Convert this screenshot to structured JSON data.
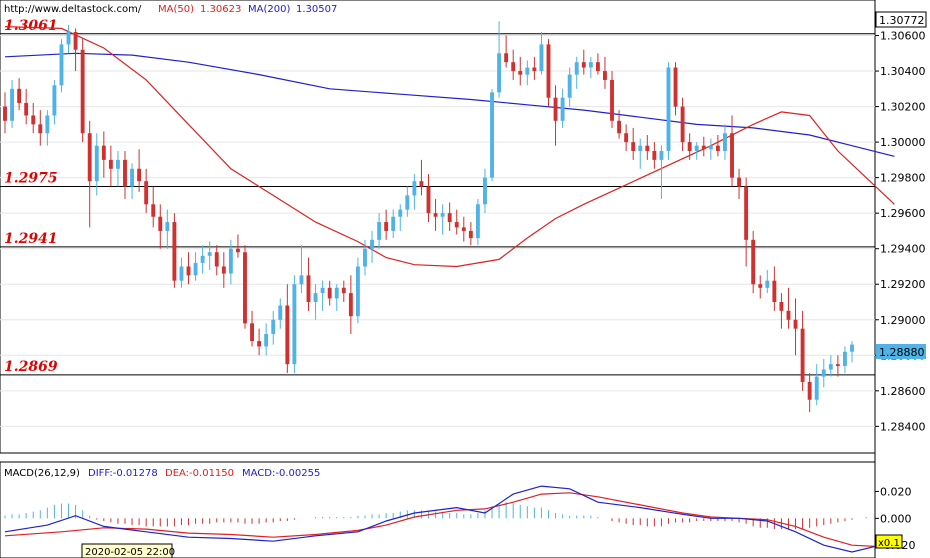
{
  "header": {
    "url": "http://www.deltastock.com/",
    "ma50_label": "MA(50)",
    "ma50_value": "1.30623",
    "ma200_label": "MA(200)",
    "ma200_value": "1.30507"
  },
  "macd_header": {
    "label": "MACD(26,12,9)",
    "diff": "DIFF:-0.01278",
    "dea": "DEA:-0.01150",
    "macd": "MACD:-0.00255"
  },
  "price_tag_top": "1.30772",
  "price_tag_current": "1.28880",
  "zoom_label": "x0.1",
  "cursor_time": "2020-02-05 22:00",
  "colors": {
    "bull": "#4fb3e8",
    "bear": "#d03030",
    "ma50": "#e02020",
    "ma200": "#2020d0",
    "level_text": "#e00000"
  },
  "chart_data": {
    "type": "candlestick",
    "ylim": [
      1.2825,
      1.308
    ],
    "y_ticks": [
      "1.30600",
      "1.30400",
      "1.30200",
      "1.30000",
      "1.29800",
      "1.29600",
      "1.29400",
      "1.29200",
      "1.29000",
      "1.28800",
      "1.28600",
      "1.28400"
    ],
    "levels": [
      {
        "label": "1.3061",
        "value": 1.3061
      },
      {
        "label": "1.2975",
        "value": 1.2975
      },
      {
        "label": "1.2941",
        "value": 1.2941
      },
      {
        "label": "1.2869",
        "value": 1.2869
      }
    ],
    "candles": [
      [
        1.302,
        1.3028,
        1.3005,
        1.3012
      ],
      [
        1.3012,
        1.3035,
        1.3008,
        1.303
      ],
      [
        1.303,
        1.3036,
        1.3018,
        1.3022
      ],
      [
        1.3022,
        1.303,
        1.301,
        1.3015
      ],
      [
        1.3015,
        1.3022,
        1.3005,
        1.301
      ],
      [
        1.301,
        1.3018,
        1.2998,
        1.3005
      ],
      [
        1.3005,
        1.3018,
        1.2998,
        1.3015
      ],
      [
        1.3015,
        1.3035,
        1.301,
        1.3032
      ],
      [
        1.3032,
        1.3058,
        1.3028,
        1.3055
      ],
      [
        1.3055,
        1.3066,
        1.305,
        1.3062
      ],
      [
        1.3062,
        1.3064,
        1.304,
        1.3052
      ],
      [
        1.3052,
        1.3058,
        1.3,
        1.3005
      ],
      [
        1.3005,
        1.3012,
        1.2952,
        1.2978
      ],
      [
        1.2978,
        1.3005,
        1.297,
        1.2998
      ],
      [
        1.2998,
        1.3006,
        1.298,
        1.299
      ],
      [
        1.299,
        1.2998,
        1.2975,
        1.2985
      ],
      [
        1.2985,
        1.2995,
        1.2975,
        1.299
      ],
      [
        1.299,
        1.2995,
        1.2968,
        1.2975
      ],
      [
        1.2975,
        1.2988,
        1.2968,
        1.2985
      ],
      [
        1.2985,
        1.2996,
        1.2972,
        1.2978
      ],
      [
        1.2978,
        1.2985,
        1.296,
        1.2965
      ],
      [
        1.2965,
        1.2975,
        1.2952,
        1.2958
      ],
      [
        1.2958,
        1.2965,
        1.294,
        1.295
      ],
      [
        1.295,
        1.2962,
        1.294,
        1.2955
      ],
      [
        1.2955,
        1.296,
        1.2918,
        1.2922
      ],
      [
        1.2922,
        1.2935,
        1.2918,
        1.293
      ],
      [
        1.293,
        1.2938,
        1.292,
        1.2925
      ],
      [
        1.2925,
        1.2938,
        1.2922,
        1.2932
      ],
      [
        1.2932,
        1.2942,
        1.2926,
        1.2936
      ],
      [
        1.2936,
        1.2944,
        1.2928,
        1.2938
      ],
      [
        1.2938,
        1.2942,
        1.2925,
        1.293
      ],
      [
        1.293,
        1.2938,
        1.2918,
        1.2926
      ],
      [
        1.2926,
        1.2945,
        1.292,
        1.294
      ],
      [
        1.294,
        1.2948,
        1.2935,
        1.2938
      ],
      [
        1.2938,
        1.2942,
        1.2895,
        1.2898
      ],
      [
        1.2898,
        1.2905,
        1.2885,
        1.2888
      ],
      [
        1.2888,
        1.2895,
        1.288,
        1.2885
      ],
      [
        1.2885,
        1.2898,
        1.288,
        1.2892
      ],
      [
        1.2892,
        1.2905,
        1.2886,
        1.29
      ],
      [
        1.29,
        1.2912,
        1.2895,
        1.2908
      ],
      [
        1.2908,
        1.292,
        1.287,
        1.2875
      ],
      [
        1.2875,
        1.2925,
        1.287,
        1.292
      ],
      [
        1.292,
        1.2942,
        1.2915,
        1.2925
      ],
      [
        1.2925,
        1.2935,
        1.2905,
        1.291
      ],
      [
        1.291,
        1.292,
        1.29,
        1.2915
      ],
      [
        1.2915,
        1.2922,
        1.2905,
        1.2918
      ],
      [
        1.2918,
        1.2922,
        1.2908,
        1.2912
      ],
      [
        1.2912,
        1.292,
        1.2905,
        1.2918
      ],
      [
        1.2918,
        1.2922,
        1.291,
        1.2915
      ],
      [
        1.2915,
        1.2925,
        1.2892,
        1.2902
      ],
      [
        1.2902,
        1.2935,
        1.2898,
        1.293
      ],
      [
        1.293,
        1.2945,
        1.2925,
        1.294
      ],
      [
        1.294,
        1.295,
        1.2932,
        1.2945
      ],
      [
        1.2945,
        1.296,
        1.294,
        1.2955
      ],
      [
        1.2955,
        1.2962,
        1.2945,
        1.295
      ],
      [
        1.295,
        1.2962,
        1.2946,
        1.2958
      ],
      [
        1.2958,
        1.2965,
        1.295,
        1.2962
      ],
      [
        1.2962,
        1.2975,
        1.2958,
        1.297
      ],
      [
        1.297,
        1.2982,
        1.2962,
        1.2978
      ],
      [
        1.2978,
        1.299,
        1.297,
        1.2975
      ],
      [
        1.2975,
        1.2982,
        1.2955,
        1.296
      ],
      [
        1.296,
        1.2968,
        1.295,
        1.2958
      ],
      [
        1.2958,
        1.2965,
        1.2948,
        1.296
      ],
      [
        1.296,
        1.2966,
        1.295,
        1.2955
      ],
      [
        1.2955,
        1.2962,
        1.2948,
        1.2952
      ],
      [
        1.2952,
        1.2958,
        1.2944,
        1.295
      ],
      [
        1.295,
        1.2955,
        1.2942,
        1.2946
      ],
      [
        1.2946,
        1.2968,
        1.2942,
        1.2965
      ],
      [
        1.2965,
        1.2985,
        1.296,
        1.298
      ],
      [
        1.298,
        1.303,
        1.2978,
        1.3028
      ],
      [
        1.3028,
        1.3068,
        1.3025,
        1.305
      ],
      [
        1.305,
        1.306,
        1.3042,
        1.3045
      ],
      [
        1.3045,
        1.3052,
        1.3035,
        1.304
      ],
      [
        1.304,
        1.3048,
        1.3032,
        1.3038
      ],
      [
        1.3038,
        1.3046,
        1.3032,
        1.3042
      ],
      [
        1.3042,
        1.3048,
        1.3035,
        1.304
      ],
      [
        1.304,
        1.3062,
        1.3038,
        1.3055
      ],
      [
        1.3055,
        1.3058,
        1.302,
        1.3025
      ],
      [
        1.3025,
        1.3032,
        1.2998,
        1.3012
      ],
      [
        1.3012,
        1.303,
        1.3008,
        1.3025
      ],
      [
        1.3025,
        1.3042,
        1.302,
        1.3038
      ],
      [
        1.3038,
        1.3048,
        1.303,
        1.3045
      ],
      [
        1.3045,
        1.3052,
        1.3038,
        1.3042
      ],
      [
        1.3042,
        1.3048,
        1.3036,
        1.3045
      ],
      [
        1.3045,
        1.305,
        1.3038,
        1.304
      ],
      [
        1.304,
        1.3048,
        1.303,
        1.3035
      ],
      [
        1.3035,
        1.304,
        1.3008,
        1.3012
      ],
      [
        1.3012,
        1.3018,
        1.3002,
        1.3005
      ],
      [
        1.3005,
        1.301,
        1.2995,
        1.3
      ],
      [
        1.3,
        1.3008,
        1.299,
        1.2995
      ],
      [
        1.2995,
        1.3002,
        1.2985,
        1.2998
      ],
      [
        1.2998,
        1.3004,
        1.299,
        1.2995
      ],
      [
        1.2995,
        1.3,
        1.2985,
        1.299
      ],
      [
        1.299,
        1.2998,
        1.2968,
        1.2995
      ],
      [
        1.2995,
        1.3045,
        1.299,
        1.3042
      ],
      [
        1.3042,
        1.3045,
        1.3015,
        1.302
      ],
      [
        1.302,
        1.3025,
        1.2995,
        1.3
      ],
      [
        1.3,
        1.3005,
        1.299,
        1.2995
      ],
      [
        1.2995,
        1.3,
        1.299,
        1.2998
      ],
      [
        1.2998,
        1.3003,
        1.2992,
        1.2996
      ],
      [
        1.2996,
        1.3002,
        1.299,
        1.2998
      ],
      [
        1.2998,
        1.3004,
        1.2992,
        1.2995
      ],
      [
        1.2995,
        1.301,
        1.299,
        1.3005
      ],
      [
        1.3005,
        1.3015,
        1.2975,
        1.298
      ],
      [
        1.298,
        1.2985,
        1.2968,
        1.2975
      ],
      [
        1.2975,
        1.298,
        1.293,
        1.2945
      ],
      [
        1.2945,
        1.295,
        1.2915,
        1.292
      ],
      [
        1.292,
        1.2925,
        1.2912,
        1.2918
      ],
      [
        1.2918,
        1.2928,
        1.2915,
        1.2922
      ],
      [
        1.2922,
        1.293,
        1.2905,
        1.291
      ],
      [
        1.291,
        1.2915,
        1.2895,
        1.2905
      ],
      [
        1.2905,
        1.2918,
        1.2895,
        1.29
      ],
      [
        1.29,
        1.2912,
        1.288,
        1.2895
      ],
      [
        1.2895,
        1.2905,
        1.286,
        1.2865
      ],
      [
        1.2865,
        1.287,
        1.2848,
        1.2855
      ],
      [
        1.2855,
        1.2875,
        1.2852,
        1.2868
      ],
      [
        1.2868,
        1.2878,
        1.2862,
        1.2872
      ],
      [
        1.2872,
        1.288,
        1.2868,
        1.2875
      ],
      [
        1.2875,
        1.288,
        1.2868,
        1.2874
      ],
      [
        1.2874,
        1.2885,
        1.287,
        1.2882
      ],
      [
        1.2882,
        1.2888,
        1.2876,
        1.2886
      ]
    ],
    "ma50": [
      [
        0,
        1.3065
      ],
      [
        8,
        1.3064
      ],
      [
        14,
        1.3053
      ],
      [
        20,
        1.3035
      ],
      [
        26,
        1.301
      ],
      [
        32,
        1.2985
      ],
      [
        38,
        1.297
      ],
      [
        44,
        1.2955
      ],
      [
        50,
        1.2944
      ],
      [
        54,
        1.2935
      ],
      [
        58,
        1.2931
      ],
      [
        64,
        1.293
      ],
      [
        70,
        1.2934
      ],
      [
        74,
        1.2946
      ],
      [
        78,
        1.2957
      ],
      [
        82,
        1.2965
      ],
      [
        88,
        1.2976
      ],
      [
        94,
        1.2987
      ],
      [
        100,
        1.2998
      ],
      [
        106,
        1.301
      ],
      [
        110,
        1.3017
      ],
      [
        114,
        1.3015
      ],
      [
        118,
        1.2995
      ],
      [
        122,
        1.298
      ],
      [
        126,
        1.2965
      ]
    ],
    "ma200": [
      [
        0,
        1.3048
      ],
      [
        10,
        1.305
      ],
      [
        18,
        1.3049
      ],
      [
        26,
        1.3045
      ],
      [
        36,
        1.3038
      ],
      [
        46,
        1.303
      ],
      [
        56,
        1.3027
      ],
      [
        66,
        1.3024
      ],
      [
        74,
        1.3021
      ],
      [
        82,
        1.3018
      ],
      [
        90,
        1.3014
      ],
      [
        98,
        1.301
      ],
      [
        106,
        1.3008
      ],
      [
        114,
        1.3004
      ],
      [
        120,
        1.2998
      ],
      [
        126,
        1.2992
      ]
    ],
    "macd_ylim": [
      -0.028,
      0.03
    ],
    "macd_ticks": [
      {
        "label": "0.020",
        "value": 0.02
      },
      {
        "label": "0.000",
        "value": 0.0
      },
      {
        "label": "-0.020",
        "value": -0.02
      }
    ],
    "macd_hist": [
      0.002,
      0.003,
      0.003,
      0.004,
      0.005,
      0.006,
      0.008,
      0.01,
      0.011,
      0.011,
      0.01,
      0.006,
      0.002,
      -0.001,
      -0.002,
      -0.003,
      -0.004,
      -0.004,
      -0.005,
      -0.005,
      -0.006,
      -0.006,
      -0.006,
      -0.006,
      -0.006,
      -0.005,
      -0.005,
      -0.004,
      -0.004,
      -0.004,
      -0.003,
      -0.003,
      -0.003,
      -0.003,
      -0.004,
      -0.004,
      -0.004,
      -0.003,
      -0.003,
      -0.002,
      -0.002,
      -0.001,
      0.0,
      0.0,
      0.001,
      0.001,
      0.001,
      0.001,
      0.001,
      0.001,
      0.002,
      0.002,
      0.003,
      0.003,
      0.004,
      0.004,
      0.005,
      0.006,
      0.006,
      0.006,
      0.005,
      0.005,
      0.005,
      0.004,
      0.004,
      0.003,
      0.003,
      0.004,
      0.006,
      0.009,
      0.011,
      0.012,
      0.011,
      0.01,
      0.009,
      0.008,
      0.008,
      0.006,
      0.004,
      0.003,
      0.002,
      0.002,
      0.002,
      0.002,
      0.001,
      0.0,
      -0.002,
      -0.003,
      -0.004,
      -0.005,
      -0.005,
      -0.006,
      -0.006,
      -0.006,
      -0.004,
      -0.003,
      -0.003,
      -0.003,
      -0.002,
      -0.002,
      -0.002,
      -0.002,
      -0.002,
      -0.002,
      -0.003,
      -0.004,
      -0.006,
      -0.007,
      -0.007,
      -0.008,
      -0.008,
      -0.008,
      -0.008,
      -0.008,
      -0.007,
      -0.006,
      -0.005,
      -0.004,
      -0.003,
      -0.002,
      -0.001,
      0.0,
      0.001
    ],
    "macd_diff": [
      [
        0,
        -0.01
      ],
      [
        6,
        -0.005
      ],
      [
        10,
        0.002
      ],
      [
        14,
        -0.006
      ],
      [
        20,
        -0.01
      ],
      [
        26,
        -0.014
      ],
      [
        32,
        -0.015
      ],
      [
        38,
        -0.017
      ],
      [
        44,
        -0.013
      ],
      [
        50,
        -0.01
      ],
      [
        54,
        -0.002
      ],
      [
        58,
        0.004
      ],
      [
        64,
        0.008
      ],
      [
        68,
        0.004
      ],
      [
        72,
        0.018
      ],
      [
        76,
        0.024
      ],
      [
        80,
        0.022
      ],
      [
        84,
        0.012
      ],
      [
        90,
        0.008
      ],
      [
        96,
        0.003
      ],
      [
        100,
        0.0
      ],
      [
        104,
        0.0
      ],
      [
        108,
        -0.002
      ],
      [
        112,
        -0.01
      ],
      [
        116,
        -0.02
      ],
      [
        120,
        -0.025
      ],
      [
        124,
        -0.02
      ],
      [
        126,
        -0.015
      ]
    ],
    "macd_dea": [
      [
        0,
        -0.013
      ],
      [
        8,
        -0.01
      ],
      [
        14,
        -0.007
      ],
      [
        20,
        -0.008
      ],
      [
        26,
        -0.011
      ],
      [
        32,
        -0.012
      ],
      [
        38,
        -0.014
      ],
      [
        44,
        -0.012
      ],
      [
        50,
        -0.009
      ],
      [
        54,
        -0.005
      ],
      [
        58,
        0.001
      ],
      [
        64,
        0.006
      ],
      [
        68,
        0.007
      ],
      [
        72,
        0.012
      ],
      [
        76,
        0.018
      ],
      [
        80,
        0.019
      ],
      [
        84,
        0.016
      ],
      [
        90,
        0.01
      ],
      [
        96,
        0.004
      ],
      [
        100,
        0.001
      ],
      [
        104,
        0.0
      ],
      [
        108,
        -0.001
      ],
      [
        112,
        -0.006
      ],
      [
        116,
        -0.014
      ],
      [
        120,
        -0.02
      ],
      [
        124,
        -0.021
      ],
      [
        126,
        -0.02
      ]
    ]
  }
}
